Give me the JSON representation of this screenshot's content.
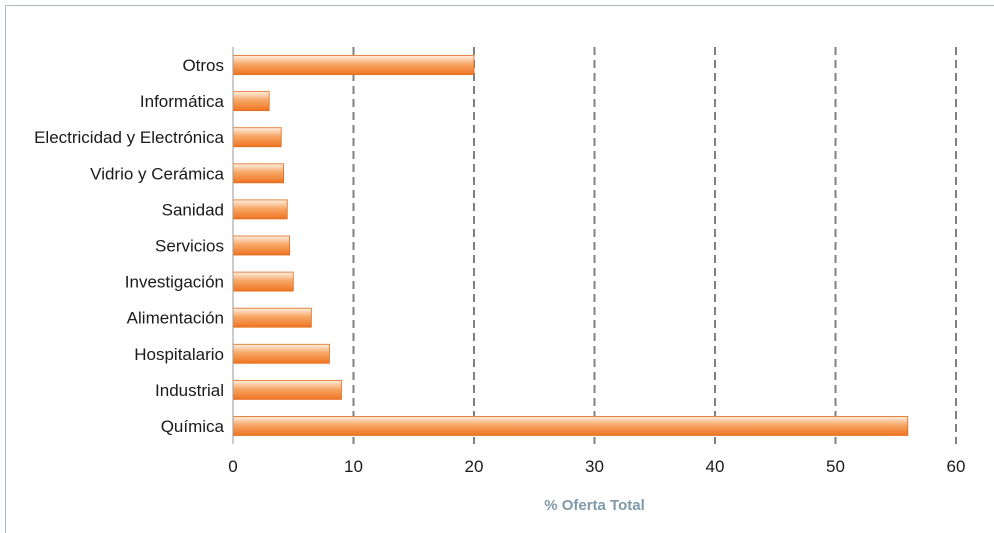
{
  "chart_data": {
    "type": "bar",
    "orientation": "horizontal",
    "categories": [
      "Otros",
      "Informática",
      "Electricidad y Electrónica",
      "Vidrio y Cerámica",
      "Sanidad",
      "Servicios",
      "Investigación",
      "Alimentación",
      "Hospitalario",
      "Industrial",
      "Química"
    ],
    "values": [
      20,
      3,
      4,
      4.2,
      4.5,
      4.7,
      5,
      6.5,
      8,
      9,
      56
    ],
    "xlabel": "% Oferta Total",
    "ylabel": "",
    "xlim": [
      0,
      60
    ],
    "xticks": [
      "0",
      "10",
      "20",
      "30",
      "40",
      "50",
      "60"
    ],
    "grid": "vertical dashed",
    "legend": "none",
    "colors": {
      "bar_top": "#fef0e2",
      "bar_mid": "#f7a766",
      "bar_bottom": "#ee7422",
      "bar_edge": "#e06a18",
      "grid": "#808080",
      "axis_title": "#7f9aab",
      "frame": "#a8b8c4"
    }
  }
}
